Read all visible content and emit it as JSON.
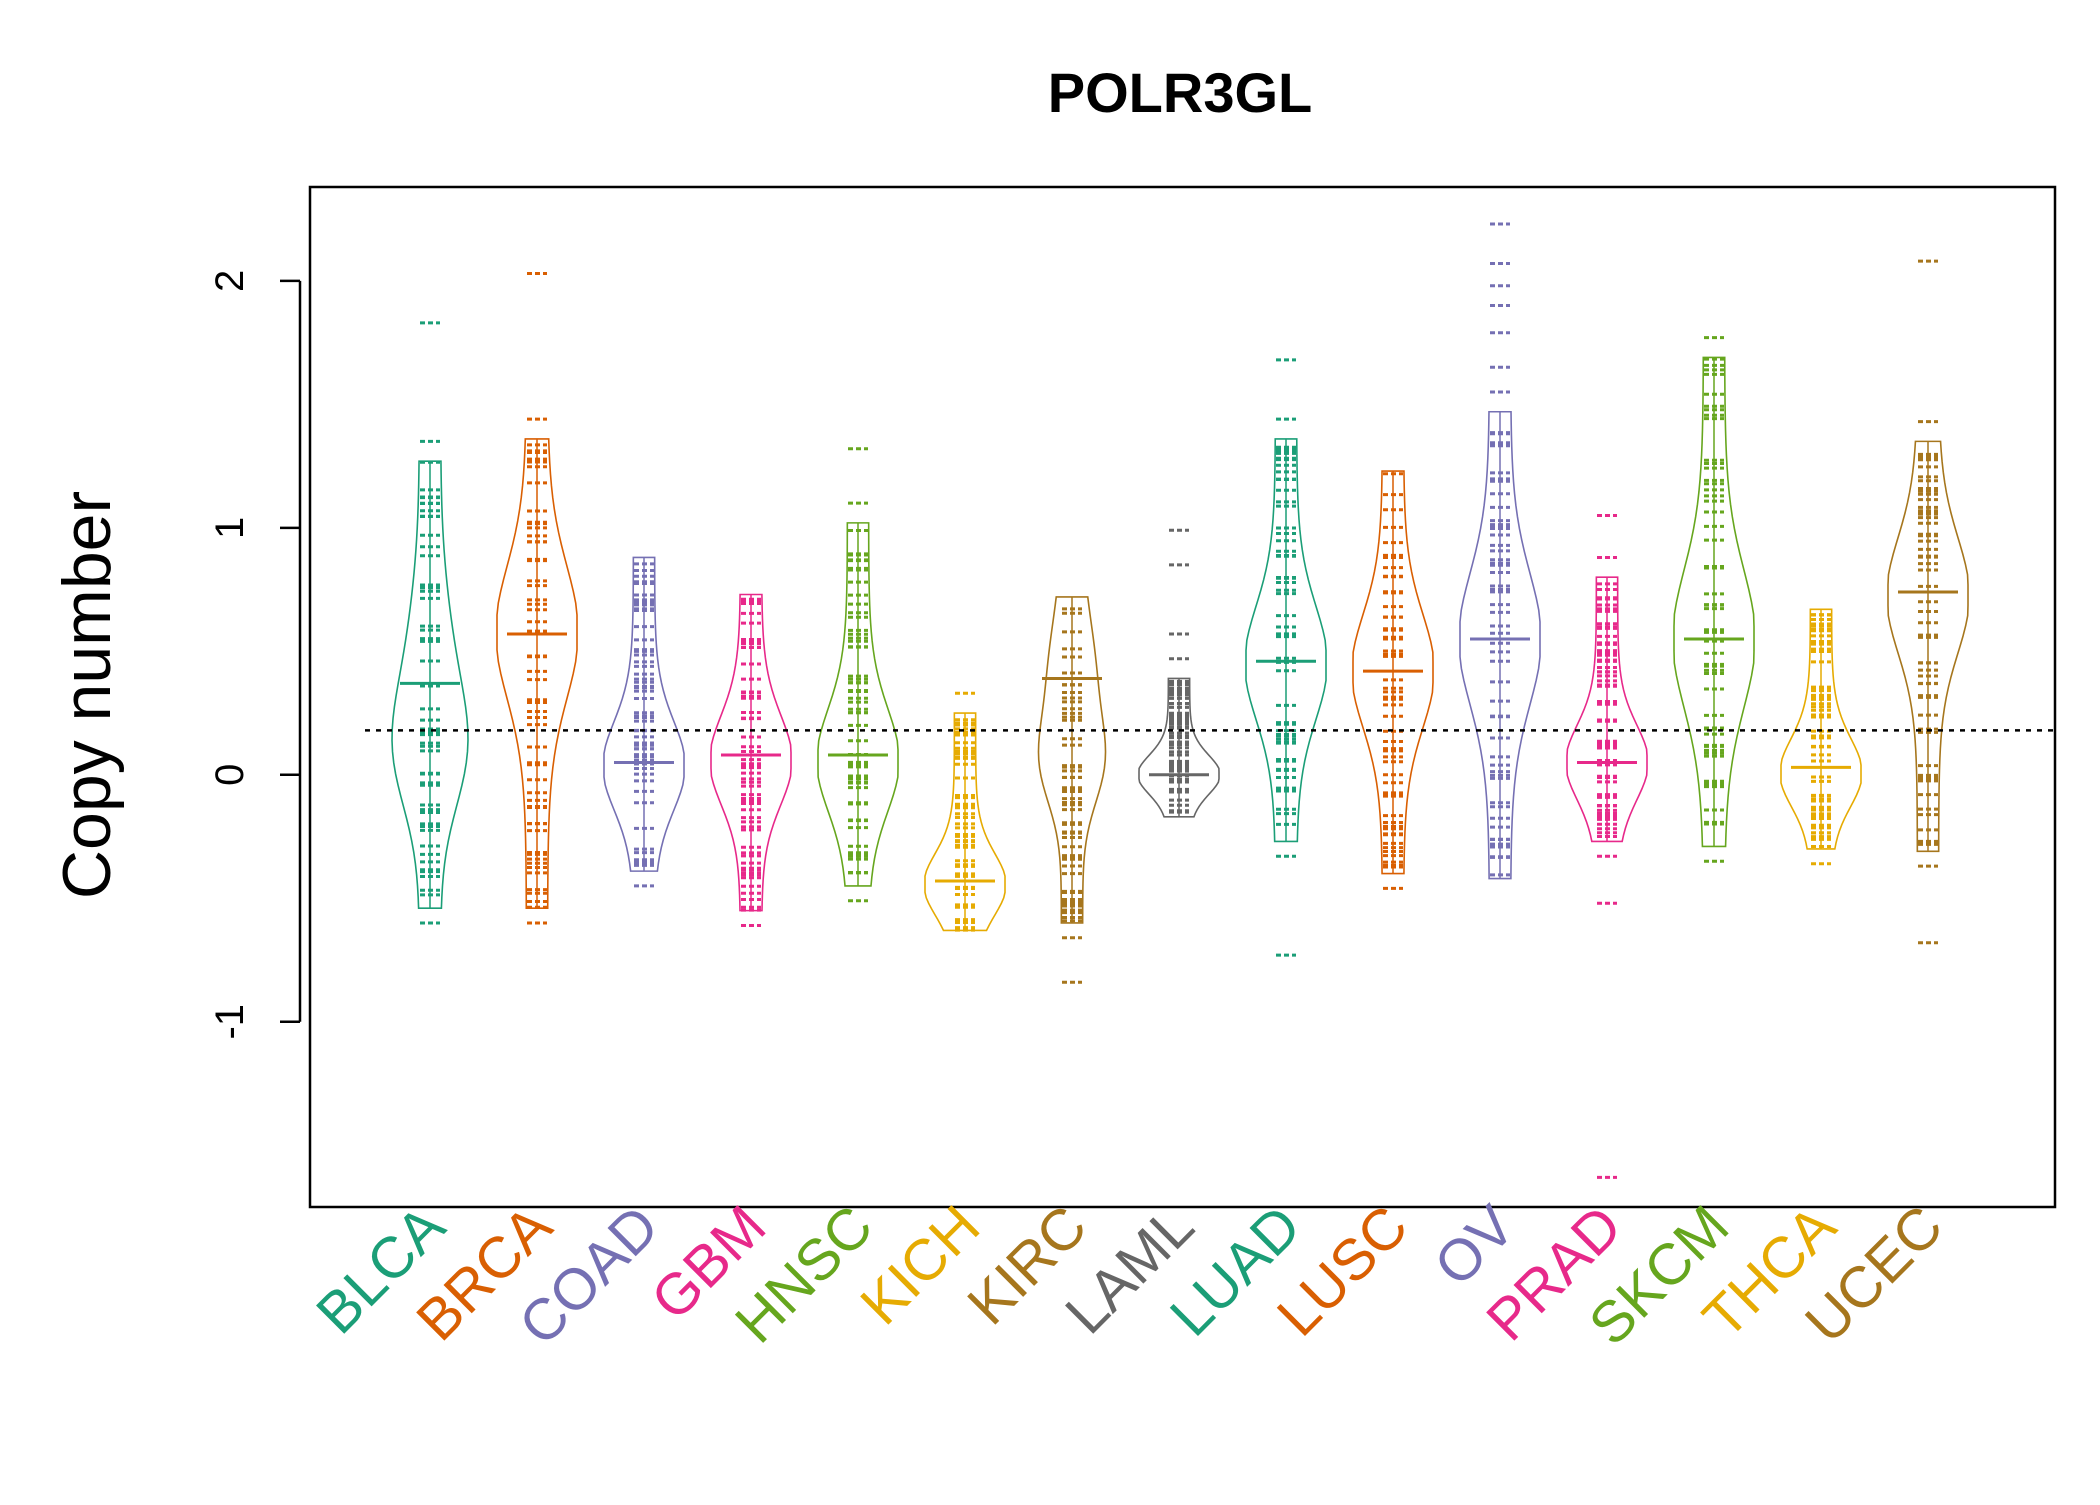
{
  "chart_data": {
    "type": "beanplot",
    "title": "POLR3GL",
    "xlabel": "",
    "ylabel": "Copy number",
    "ylim": [
      -1.75,
      2.38
    ],
    "yticks": [
      -1,
      0,
      1,
      2
    ],
    "ytick_labels": [
      "-1",
      "0",
      "1",
      "2"
    ],
    "reference_line": 0.18,
    "categories": [
      "BLCA",
      "BRCA",
      "COAD",
      "GBM",
      "HNSC",
      "KICH",
      "KIRC",
      "LAML",
      "LUAD",
      "LUSC",
      "OV",
      "PRAD",
      "SKCM",
      "THCA",
      "UCEC"
    ],
    "colors": [
      "#1B9E77",
      "#D95F02",
      "#7570B3",
      "#E7298A",
      "#66A61E",
      "#E6AB02",
      "#A6761D",
      "#666666",
      "#1B9E77",
      "#D95F02",
      "#7570B3",
      "#E7298A",
      "#66A61E",
      "#E6AB02",
      "#A6761D"
    ],
    "series": [
      {
        "name": "BLCA",
        "min": -0.6,
        "max": 1.83,
        "mean": 0.37,
        "median": 0.08,
        "outliers": [
          1.83,
          1.35,
          -0.6
        ]
      },
      {
        "name": "BRCA",
        "min": -0.6,
        "max": 2.03,
        "mean": 0.57,
        "median": 0.58,
        "outliers": [
          2.03,
          1.44,
          -0.6
        ]
      },
      {
        "name": "COAD",
        "min": -0.45,
        "max": 0.88,
        "mean": 0.05,
        "median": 0.03,
        "outliers": [
          -0.45
        ]
      },
      {
        "name": "GBM",
        "min": -0.61,
        "max": 0.73,
        "mean": 0.08,
        "median": 0.05,
        "outliers": [
          -0.61
        ]
      },
      {
        "name": "HNSC",
        "min": -0.51,
        "max": 1.32,
        "mean": 0.08,
        "median": 0.05,
        "outliers": [
          1.32,
          1.1,
          -0.51
        ]
      },
      {
        "name": "KICH",
        "min": -0.63,
        "max": 0.38,
        "mean": -0.43,
        "median": -0.45,
        "outliers": [
          0.33
        ]
      },
      {
        "name": "KIRC",
        "min": -0.84,
        "max": 0.72,
        "mean": 0.39,
        "median": 0.04,
        "outliers": [
          -0.84,
          -0.66
        ]
      },
      {
        "name": "LAML",
        "min": -0.17,
        "max": 0.99,
        "mean": 0.0,
        "median": 0.0,
        "outliers": [
          0.99,
          0.85,
          0.57,
          0.47
        ]
      },
      {
        "name": "LUAD",
        "min": -0.73,
        "max": 1.68,
        "mean": 0.46,
        "median": 0.45,
        "outliers": [
          1.68,
          1.44,
          -0.33,
          -0.73
        ]
      },
      {
        "name": "LUSC",
        "min": -0.46,
        "max": 1.23,
        "mean": 0.42,
        "median": 0.42,
        "outliers": [
          -0.46
        ]
      },
      {
        "name": "OV",
        "min": -0.42,
        "max": 2.23,
        "mean": 0.55,
        "median": 0.55,
        "outliers": [
          2.23,
          2.07,
          1.98,
          1.9,
          1.79,
          1.65,
          1.55
        ]
      },
      {
        "name": "PRAD",
        "min": -1.63,
        "max": 1.05,
        "mean": 0.05,
        "median": 0.05,
        "outliers": [
          1.05,
          0.88,
          -0.33,
          -0.52,
          -1.63
        ]
      },
      {
        "name": "SKCM",
        "min": -0.43,
        "max": 1.77,
        "mean": 0.55,
        "median": 0.55,
        "outliers": [
          1.77,
          -0.35
        ]
      },
      {
        "name": "THCA",
        "min": -0.36,
        "max": 0.67,
        "mean": 0.03,
        "median": 0.0,
        "outliers": [
          -0.36
        ]
      },
      {
        "name": "UCEC",
        "min": -0.68,
        "max": 2.08,
        "mean": 0.74,
        "median": 0.72,
        "outliers": [
          2.08,
          1.43,
          -0.37,
          -0.68
        ]
      }
    ]
  }
}
